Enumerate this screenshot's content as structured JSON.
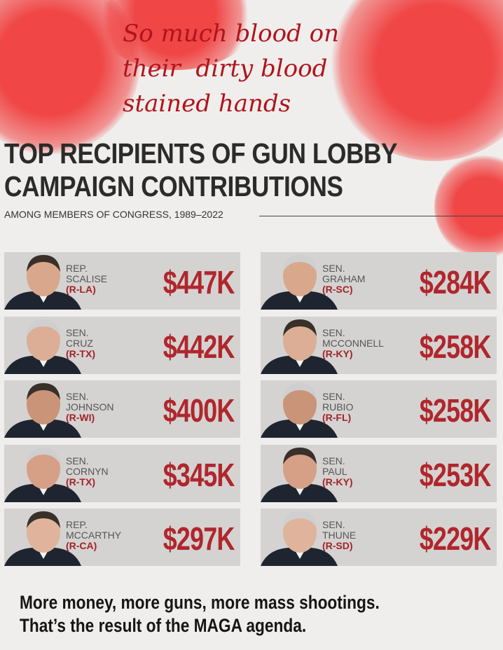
{
  "overlay_text": [
    "So much blood on",
    "their  dirty blood",
    "stained hands"
  ],
  "header": {
    "title_lines": [
      "TOP RECIPIENTS OF GUN LOBBY",
      "CAMPAIGN CONTRIBUTIONS"
    ],
    "subtitle": "AMONG MEMBERS OF CONGRESS, 1989–2022"
  },
  "recipients": [
    {
      "office": "REP.",
      "name": "SCALISE",
      "party": "(R-LA)",
      "amount": "$447K"
    },
    {
      "office": "SEN.",
      "name": "CRUZ",
      "party": "(R-TX)",
      "amount": "$442K"
    },
    {
      "office": "SEN.",
      "name": "JOHNSON",
      "party": "(R-WI)",
      "amount": "$400K"
    },
    {
      "office": "SEN.",
      "name": "CORNYN",
      "party": "(R-TX)",
      "amount": "$345K"
    },
    {
      "office": "REP.",
      "name": "MCCARTHY",
      "party": "(R-CA)",
      "amount": "$297K"
    },
    {
      "office": "SEN.",
      "name": "GRAHAM",
      "party": "(R-SC)",
      "amount": "$284K"
    },
    {
      "office": "SEN.",
      "name": "MCCONNELL",
      "party": "(R-KY)",
      "amount": "$258K"
    },
    {
      "office": "SEN.",
      "name": "RUBIO",
      "party": "(R-FL)",
      "amount": "$258K"
    },
    {
      "office": "SEN.",
      "name": "PAUL",
      "party": "(R-KY)",
      "amount": "$253K"
    },
    {
      "office": "SEN.",
      "name": "THUNE",
      "party": "(R-SD)",
      "amount": "$229K"
    }
  ],
  "footer": {
    "lines": [
      "More money, more guns, more mass shootings.",
      "That’s the result of the MAGA agenda."
    ]
  }
}
